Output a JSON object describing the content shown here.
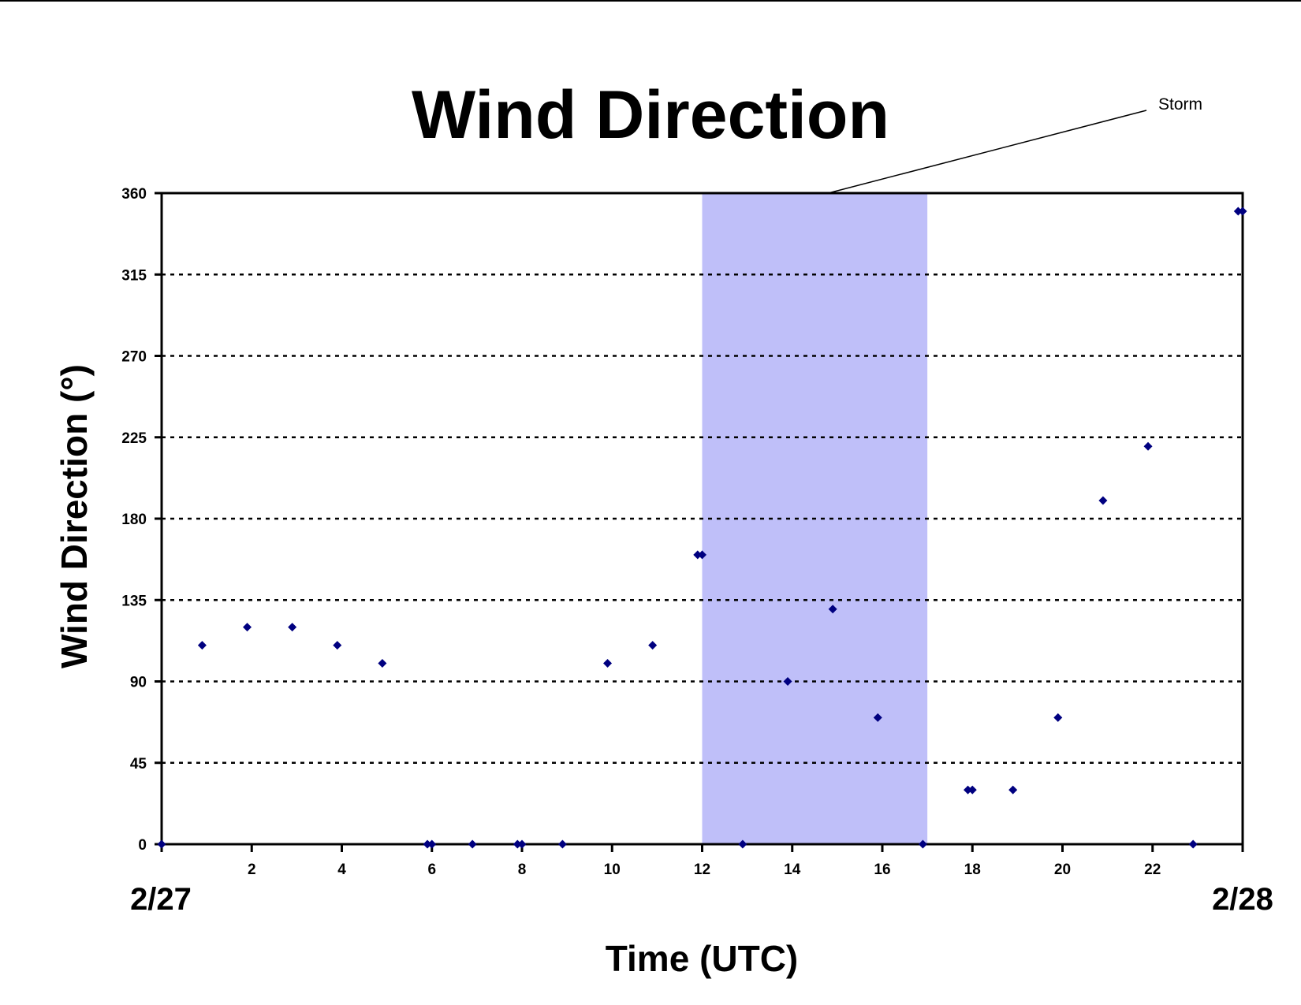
{
  "chart_data": {
    "type": "scatter",
    "title": "Wind Direction",
    "xlabel": "Time (UTC)",
    "ylabel": "Wind Direction (°)",
    "xlim": [
      0,
      24
    ],
    "ylim": [
      0,
      360
    ],
    "x_ticks": [
      0,
      2,
      4,
      6,
      8,
      10,
      12,
      14,
      16,
      18,
      20,
      22,
      24
    ],
    "x_tick_labels": [
      "",
      "2",
      "4",
      "6",
      "8",
      "10",
      "12",
      "14",
      "16",
      "18",
      "20",
      "22",
      ""
    ],
    "y_ticks": [
      0,
      45,
      90,
      135,
      180,
      225,
      270,
      315,
      360
    ],
    "y_tick_labels": [
      "0",
      "45",
      "90",
      "135",
      "180",
      "225",
      "270",
      "315",
      "360"
    ],
    "grid": "horizontal dotted",
    "date_labels": {
      "start": "2/27",
      "end": "2/28"
    },
    "shaded_region": {
      "label": "Storm",
      "x_start": 12,
      "x_end": 17,
      "color": "#bfbff9"
    },
    "marker_color": "#000080",
    "points": [
      {
        "x": 0.0,
        "y": 0
      },
      {
        "x": 0.9,
        "y": 110
      },
      {
        "x": 1.9,
        "y": 120
      },
      {
        "x": 2.9,
        "y": 120
      },
      {
        "x": 3.9,
        "y": 110
      },
      {
        "x": 4.9,
        "y": 100
      },
      {
        "x": 5.9,
        "y": 0
      },
      {
        "x": 6.0,
        "y": 0
      },
      {
        "x": 6.9,
        "y": 0
      },
      {
        "x": 7.9,
        "y": 0
      },
      {
        "x": 8.0,
        "y": 0
      },
      {
        "x": 8.9,
        "y": 0
      },
      {
        "x": 9.9,
        "y": 100
      },
      {
        "x": 10.9,
        "y": 110
      },
      {
        "x": 11.9,
        "y": 160
      },
      {
        "x": 12.0,
        "y": 160
      },
      {
        "x": 12.9,
        "y": 0
      },
      {
        "x": 13.9,
        "y": 90
      },
      {
        "x": 14.9,
        "y": 130
      },
      {
        "x": 15.9,
        "y": 70
      },
      {
        "x": 16.9,
        "y": 0
      },
      {
        "x": 17.9,
        "y": 30
      },
      {
        "x": 18.0,
        "y": 30
      },
      {
        "x": 18.9,
        "y": 30
      },
      {
        "x": 19.9,
        "y": 70
      },
      {
        "x": 20.9,
        "y": 190
      },
      {
        "x": 21.9,
        "y": 220
      },
      {
        "x": 22.9,
        "y": 0
      },
      {
        "x": 23.9,
        "y": 350
      },
      {
        "x": 24.0,
        "y": 350
      }
    ]
  }
}
